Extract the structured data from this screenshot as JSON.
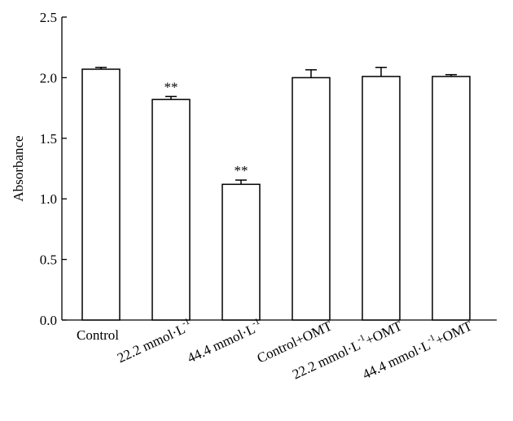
{
  "chart_data": {
    "type": "bar",
    "title": "",
    "xlabel": "",
    "ylabel": "Absorbance",
    "ylim": [
      0,
      2.5
    ],
    "yticks": [
      {
        "value": 0.0,
        "label": "0.0"
      },
      {
        "value": 0.5,
        "label": "0.5"
      },
      {
        "value": 1.0,
        "label": "1.0"
      },
      {
        "value": 1.5,
        "label": "1.5"
      },
      {
        "value": 2.0,
        "label": "2.0"
      },
      {
        "value": 2.5,
        "label": "2.5"
      }
    ],
    "categories": [
      {
        "base": "Control",
        "sup": "",
        "tail": ""
      },
      {
        "base": "22.2 mmol·L",
        "sup": "-1",
        "tail": ""
      },
      {
        "base": "44.4 mmol·L",
        "sup": "-1",
        "tail": ""
      },
      {
        "base": "Control+OMT",
        "sup": "",
        "tail": ""
      },
      {
        "base": "22.2 mmol·L",
        "sup": "-1",
        "tail": "+OMT"
      },
      {
        "base": "44.4 mmol·L",
        "sup": "-1",
        "tail": "+OMT"
      }
    ],
    "values": [
      2.07,
      1.82,
      1.12,
      2.0,
      2.01,
      2.01
    ],
    "errors": [
      0.015,
      0.025,
      0.035,
      0.065,
      0.075,
      0.015
    ],
    "significance": [
      "",
      "**",
      "**",
      "",
      "",
      ""
    ],
    "grid": false,
    "legend": "none",
    "colors": {
      "bar_fill": "#ffffff",
      "stroke": "#000000"
    }
  }
}
